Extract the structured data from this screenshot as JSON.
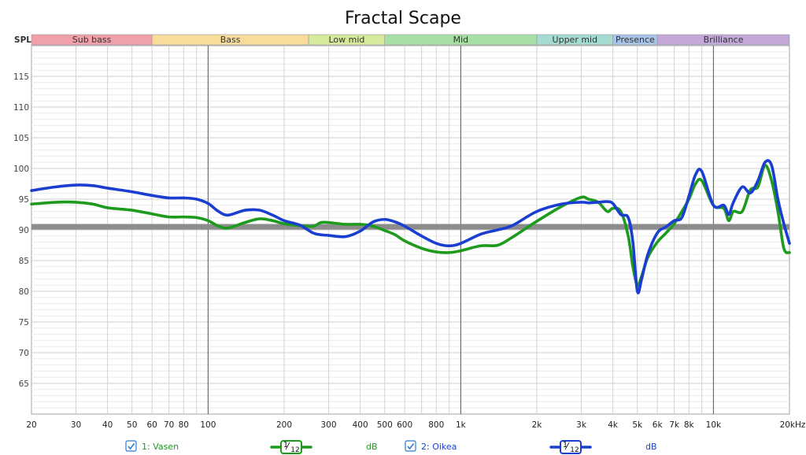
{
  "chart_data": {
    "type": "line",
    "title": "Fractal Scape",
    "ylabel": "SPL",
    "xscale": "log",
    "xlim": [
      20,
      20000
    ],
    "ylim": [
      60,
      120
    ],
    "grid": true,
    "x_ticks": [
      20,
      30,
      40,
      50,
      60,
      70,
      80,
      100,
      200,
      300,
      400,
      500,
      600,
      800,
      1000,
      2000,
      3000,
      4000,
      5000,
      6000,
      7000,
      8000,
      10000,
      20000
    ],
    "x_tick_labels": [
      "20",
      "30",
      "40",
      "50",
      "60",
      "70",
      "80",
      "100",
      "200",
      "300",
      "400",
      "500",
      "600",
      "800",
      "1k",
      "2k",
      "3k",
      "4k",
      "5k",
      "6k",
      "7k",
      "8k",
      "10k",
      "20kHz"
    ],
    "y_ticks": [
      65,
      70,
      75,
      80,
      85,
      90,
      95,
      100,
      105,
      110,
      115
    ],
    "y_tick_labels": [
      "65",
      "70",
      "75",
      "80",
      "85",
      "90",
      "95",
      "100",
      "105",
      "110",
      "115"
    ],
    "bands": [
      {
        "label": "Sub bass",
        "from": 20,
        "to": 60,
        "color": "#f0a0a8"
      },
      {
        "label": "Bass",
        "from": 60,
        "to": 250,
        "color": "#f7dc9a"
      },
      {
        "label": "Low mid",
        "from": 250,
        "to": 500,
        "color": "#d6ea9c"
      },
      {
        "label": "Mid",
        "from": 500,
        "to": 2000,
        "color": "#a6e0a4"
      },
      {
        "label": "Upper mid",
        "from": 2000,
        "to": 4000,
        "color": "#a4dcd2"
      },
      {
        "label": "Presence",
        "from": 4000,
        "to": 6000,
        "color": "#a8c4e8"
      },
      {
        "label": "Brilliance",
        "from": 6000,
        "to": 20000,
        "color": "#c3a8d8"
      }
    ],
    "reference_line": {
      "y": 90.5,
      "color": "#8c8c8c"
    },
    "series": [
      {
        "name": "1: Vasen",
        "color": "#1e9a1e",
        "x": [
          20,
          25,
          30,
          35,
          40,
          50,
          60,
          70,
          80,
          90,
          100,
          110,
          120,
          140,
          160,
          180,
          200,
          230,
          260,
          280,
          300,
          350,
          400,
          450,
          500,
          550,
          600,
          700,
          800,
          900,
          1000,
          1200,
          1400,
          1600,
          2000,
          2500,
          3000,
          3200,
          3500,
          3800,
          4000,
          4300,
          4600,
          4800,
          5000,
          5200,
          5500,
          6000,
          6500,
          7000,
          7500,
          8000,
          8500,
          9000,
          10000,
          11000,
          11500,
          12000,
          13000,
          14000,
          15000,
          16000,
          17000,
          18000,
          19000,
          20000
        ],
        "values": [
          94.2,
          94.5,
          94.5,
          94.2,
          93.6,
          93.2,
          92.6,
          92.1,
          92.1,
          92.0,
          91.5,
          90.6,
          90.3,
          91.2,
          91.8,
          91.5,
          91.0,
          90.7,
          90.6,
          91.2,
          91.2,
          90.9,
          90.9,
          90.6,
          89.9,
          89.2,
          88.2,
          87.0,
          86.4,
          86.3,
          86.6,
          87.4,
          87.5,
          88.8,
          91.4,
          93.8,
          95.3,
          95.0,
          94.5,
          93.0,
          93.5,
          93.0,
          89.0,
          84.0,
          81.0,
          82.5,
          85.5,
          88.0,
          89.5,
          91.0,
          93.0,
          95.0,
          97.5,
          98.0,
          94.0,
          93.5,
          91.5,
          93.0,
          93.0,
          96.5,
          97.0,
          100.5,
          98.0,
          93.0,
          87.0,
          86.3
        ]
      },
      {
        "name": "2: Oikea",
        "color": "#1a3fd0",
        "x": [
          20,
          25,
          30,
          35,
          40,
          50,
          60,
          70,
          80,
          90,
          100,
          110,
          120,
          140,
          160,
          180,
          200,
          230,
          260,
          280,
          300,
          350,
          400,
          450,
          500,
          550,
          600,
          700,
          800,
          900,
          1000,
          1200,
          1400,
          1600,
          2000,
          2500,
          3000,
          3200,
          3500,
          3800,
          4000,
          4300,
          4600,
          4800,
          5000,
          5200,
          5500,
          6000,
          6500,
          7000,
          7500,
          8000,
          8500,
          9000,
          10000,
          11000,
          11500,
          12000,
          13000,
          14000,
          15000,
          16000,
          17000,
          18000,
          19000,
          20000
        ],
        "values": [
          96.4,
          97.0,
          97.3,
          97.2,
          96.8,
          96.2,
          95.6,
          95.2,
          95.2,
          95.0,
          94.3,
          93.0,
          92.4,
          93.2,
          93.2,
          92.4,
          91.5,
          90.8,
          89.5,
          89.2,
          89.1,
          88.9,
          89.8,
          91.3,
          91.7,
          91.3,
          90.6,
          89.0,
          87.8,
          87.4,
          87.8,
          89.3,
          90.0,
          90.7,
          93.0,
          94.2,
          94.5,
          94.4,
          94.5,
          94.6,
          94.3,
          92.5,
          92.0,
          88.0,
          80.0,
          82.0,
          86.0,
          89.5,
          90.5,
          91.5,
          92.0,
          95.5,
          99.0,
          99.5,
          94.0,
          94.0,
          92.5,
          94.5,
          97.0,
          96.0,
          98.0,
          101.0,
          100.5,
          95.0,
          91.0,
          87.8
        ]
      }
    ],
    "legend": [
      {
        "name": "1: Vasen",
        "smoothing": "1/12",
        "smoothing_num": "1",
        "smoothing_den": "12",
        "unit": "dB"
      },
      {
        "name": "2: Oikea",
        "smoothing": "1/12",
        "smoothing_num": "1",
        "smoothing_den": "12",
        "unit": "dB"
      }
    ]
  }
}
